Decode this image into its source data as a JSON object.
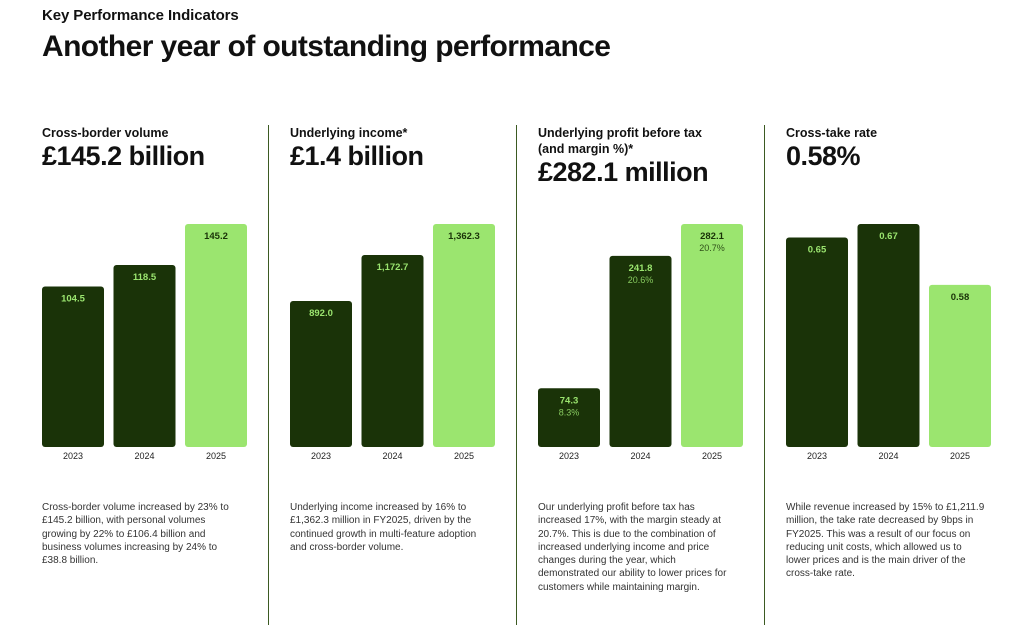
{
  "header": {
    "kicker": "Key Performance Indicators",
    "title": "Another year of outstanding performance"
  },
  "colors": {
    "bar_dark": "#1a3308",
    "bar_light": "#9be56f",
    "label_on_dark": "#9be56f",
    "label_on_light": "#1a3308",
    "divider": "#3b5a22"
  },
  "chart_data": [
    {
      "type": "bar",
      "title": "Cross-border volume",
      "headline_value": "£145.2 billion",
      "categories": [
        "2023",
        "2024",
        "2025"
      ],
      "series": [
        {
          "values": [
            104.5,
            118.5,
            145.2
          ],
          "labels": [
            "104.5",
            "118.5",
            "145.2"
          ]
        }
      ],
      "highlight_index": 2,
      "description": "Cross-border volume increased by 23% to £145.2 billion, with personal volumes growing by 22% to £106.4 billion and business volumes increasing by 24% to £38.8 billion."
    },
    {
      "type": "bar",
      "title": "Underlying income*",
      "headline_value": "£1.4 billion",
      "categories": [
        "2023",
        "2024",
        "2025"
      ],
      "series": [
        {
          "values": [
            892.0,
            1172.7,
            1362.3
          ],
          "labels": [
            "892.0",
            "1,172.7",
            "1,362.3"
          ]
        }
      ],
      "highlight_index": 2,
      "description": "Underlying income increased by 16% to £1,362.3 million in FY2025, driven by the continued growth in multi-feature adoption and cross-border volume."
    },
    {
      "type": "bar",
      "title": "Underlying profit before tax (and margin %)*",
      "headline_value": "£282.1 million",
      "categories": [
        "2023",
        "2024",
        "2025"
      ],
      "series": [
        {
          "values": [
            74.3,
            241.8,
            282.1
          ],
          "labels": [
            "74.3",
            "241.8",
            "282.1"
          ]
        },
        {
          "values": [
            8.3,
            20.6,
            20.7
          ],
          "labels": [
            "8.3%",
            "20.6%",
            "20.7%"
          ]
        }
      ],
      "highlight_index": 2,
      "description": "Our underlying profit before tax has increased 17%, with the margin steady at 20.7%. This is due to the combination of increased underlying income and price changes during the year, which demonstrated our ability to lower prices for customers while maintaining margin."
    },
    {
      "type": "bar",
      "title": "Cross-take rate",
      "headline_value": "0.58%",
      "categories": [
        "2023",
        "2024",
        "2025"
      ],
      "series": [
        {
          "values": [
            0.65,
            0.67,
            0.58
          ],
          "labels": [
            "0.65",
            "0.67",
            "0.58"
          ]
        }
      ],
      "highlight_index": 2,
      "description": "While revenue increased by 15% to £1,211.9 million, the take rate decreased by 9bps in FY2025. This was a result of our focus on reducing unit costs, which allowed us to lower prices and is the main driver of the cross-take rate."
    }
  ]
}
